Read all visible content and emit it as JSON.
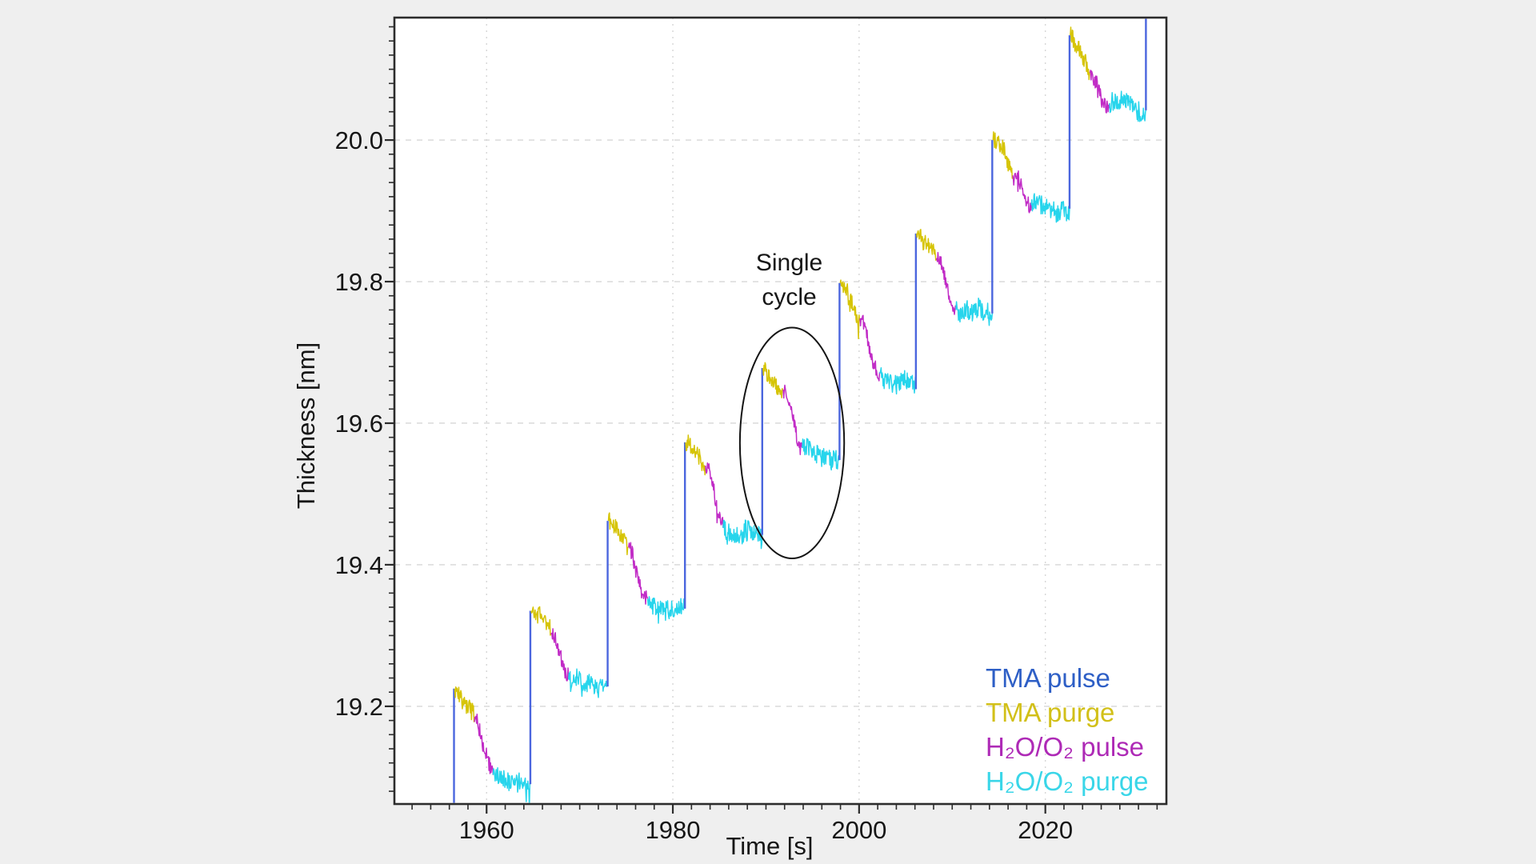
{
  "chart_data": {
    "type": "line",
    "title": "",
    "xlabel": "Time [s]",
    "ylabel": "Thickness [nm]",
    "xlim": [
      1950.1,
      2033.0
    ],
    "ylim": [
      19.062,
      20.173
    ],
    "xticks": [
      1960,
      1980,
      2000,
      2020
    ],
    "yticks": [
      19.2,
      19.4,
      19.6,
      19.8,
      20.0
    ],
    "x_minor_step_s": 2,
    "y_minor_step_nm": 0.02,
    "grid": "dashed, on, light gray",
    "legend_position": "lower right, inside plot",
    "series": [
      {
        "name": "TMA pulse",
        "line_color": "#4b66de",
        "legend_color": "#2e5fc6"
      },
      {
        "name": "TMA purge",
        "line_color": "#d6c406",
        "legend_color": "#d2c019"
      },
      {
        "name": "H₂O/O₂ pulse",
        "line_color": "#c12cc6",
        "legend_color": "#ae2ab6"
      },
      {
        "name": "H₂O/O₂ purge",
        "line_color": "#27d5ec",
        "legend_color": "#3ad6e8"
      }
    ],
    "annotation": {
      "text": "Single cycle",
      "text_center_time_s": 1992.5,
      "text_center_nm": 19.8,
      "ellipse": {
        "center_time_s": 1992.8,
        "center_nm": 19.572,
        "radius_s": 5.6,
        "radius_nm": 0.163
      }
    },
    "noise_amp_nm": {
      "tma_purge": 0.0125,
      "h2o_pulse": 0.011,
      "h2o_purge": 0.0135
    },
    "cycles": [
      {
        "tma_pulse_t": 1956.5,
        "start_nm": 19.05,
        "peak_nm": 19.225,
        "tma_purge_end": [
          1958.7,
          19.178
        ],
        "h2o_pulse_end": [
          1960.7,
          19.103
        ],
        "h2o_purge_end": [
          1964.7,
          19.09
        ]
      },
      {
        "tma_pulse_t": 1964.7,
        "start_nm": 19.09,
        "peak_nm": 19.335,
        "tma_purge_end": [
          1966.9,
          19.302
        ],
        "h2o_pulse_end": [
          1968.8,
          19.238
        ],
        "h2o_purge_end": [
          1973.0,
          19.228
        ]
      },
      {
        "tma_pulse_t": 1973.0,
        "start_nm": 19.228,
        "peak_nm": 19.462,
        "tma_purge_end": [
          1975.2,
          19.425
        ],
        "h2o_pulse_end": [
          1977.3,
          19.352
        ],
        "h2o_purge_end": [
          1981.3,
          19.338
        ]
      },
      {
        "tma_pulse_t": 1981.3,
        "start_nm": 19.338,
        "peak_nm": 19.573,
        "tma_purge_end": [
          1983.5,
          19.54
        ],
        "h2o_pulse_end": [
          1985.4,
          19.452
        ],
        "h2o_purge_end": [
          1989.6,
          19.442
        ]
      },
      {
        "tma_pulse_t": 1989.6,
        "start_nm": 19.442,
        "peak_nm": 19.678,
        "tma_purge_end": [
          1991.8,
          19.646
        ],
        "h2o_pulse_end": [
          1993.9,
          19.565
        ],
        "h2o_purge_end": [
          1997.9,
          19.548
        ]
      },
      {
        "tma_pulse_t": 1997.9,
        "start_nm": 19.548,
        "peak_nm": 19.798,
        "tma_purge_end": [
          2000.1,
          19.748
        ],
        "h2o_pulse_end": [
          2002.2,
          19.672
        ],
        "h2o_purge_end": [
          2006.1,
          19.648
        ]
      },
      {
        "tma_pulse_t": 2006.1,
        "start_nm": 19.648,
        "peak_nm": 19.868,
        "tma_purge_end": [
          2008.3,
          19.833
        ],
        "h2o_pulse_end": [
          2010.4,
          19.76
        ],
        "h2o_purge_end": [
          2014.3,
          19.755
        ]
      },
      {
        "tma_pulse_t": 2014.3,
        "start_nm": 19.755,
        "peak_nm": 20.0,
        "tma_purge_end": [
          2016.5,
          19.95
        ],
        "h2o_pulse_end": [
          2018.5,
          19.908
        ],
        "h2o_purge_end": [
          2022.6,
          19.903
        ]
      },
      {
        "tma_pulse_t": 2022.6,
        "start_nm": 19.903,
        "peak_nm": 20.148,
        "tma_purge_end": [
          2024.8,
          20.095
        ],
        "h2o_pulse_end": [
          2026.9,
          20.052
        ],
        "h2o_purge_end": [
          2030.8,
          20.042
        ]
      }
    ],
    "final_pulse": {
      "tma_pulse_t": 2030.8,
      "start_nm": 20.042,
      "end_nm": 20.175
    }
  },
  "style": {
    "background": "#efefef",
    "plot_background": "#ffffff",
    "border_color": "#2c2c2c",
    "grid_color": "#d6d6d6",
    "text_color": "#161616"
  }
}
